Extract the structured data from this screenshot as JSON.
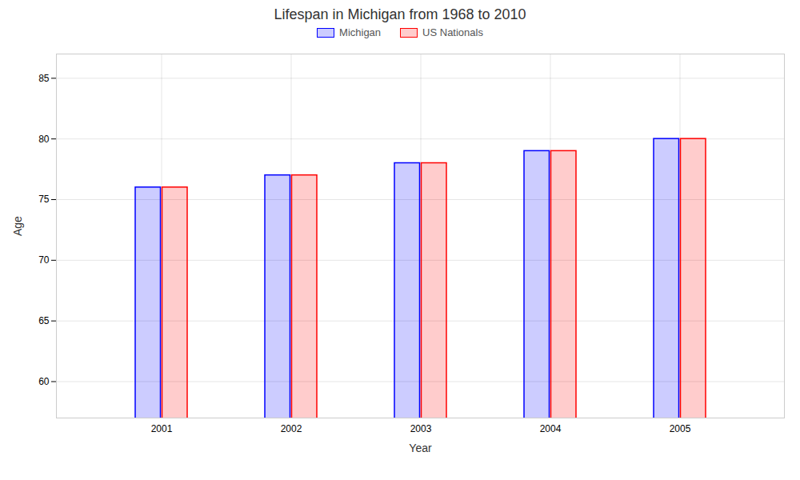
{
  "chart_data": {
    "type": "bar",
    "title": "Lifespan in Michigan from 1968 to 2010",
    "xlabel": "Year",
    "ylabel": "Age",
    "categories": [
      "2001",
      "2002",
      "2003",
      "2004",
      "2005"
    ],
    "series": [
      {
        "name": "Michigan",
        "color": "#0000ff",
        "values": [
          76,
          77,
          78,
          79,
          80
        ]
      },
      {
        "name": "US Nationals",
        "color": "#ff0000",
        "values": [
          76,
          77,
          78,
          79,
          80
        ]
      }
    ],
    "ylim": [
      57,
      87
    ],
    "yticks": [
      60,
      65,
      70,
      75,
      80,
      85
    ],
    "grid": true,
    "legend": "top"
  }
}
